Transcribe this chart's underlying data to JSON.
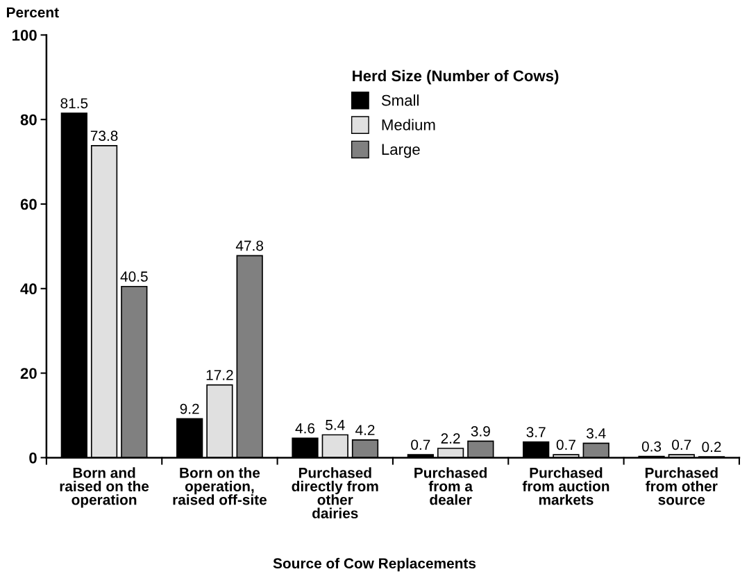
{
  "chart_data": {
    "type": "bar",
    "ylabel": "Percent",
    "xlabel": "Source of Cow Replacements",
    "legend_title": "Herd Size (Number of Cows)",
    "categories": [
      "Born and\nraised on the\noperation",
      "Born on the\noperation,\nraised off-site",
      "Purchased\ndirectly from\nother\ndairies",
      "Purchased\nfrom a\ndealer",
      "Purchased\nfrom auction\nmarkets",
      "Purchased\nfrom other\nsource"
    ],
    "series": [
      {
        "name": "Small",
        "color": "#000000",
        "values": [
          81.5,
          9.2,
          4.6,
          0.7,
          3.7,
          0.3
        ]
      },
      {
        "name": "Medium",
        "color": "#e0e0e0",
        "values": [
          73.8,
          17.2,
          5.4,
          2.2,
          0.7,
          0.7
        ]
      },
      {
        "name": "Large",
        "color": "#808080",
        "values": [
          40.5,
          47.8,
          4.2,
          3.9,
          3.4,
          0.2
        ]
      }
    ],
    "ylim": [
      0,
      100
    ],
    "yticks": [
      0,
      20,
      40,
      60,
      80,
      100
    ],
    "data_labels": true,
    "legend": "top right",
    "grid": false
  }
}
